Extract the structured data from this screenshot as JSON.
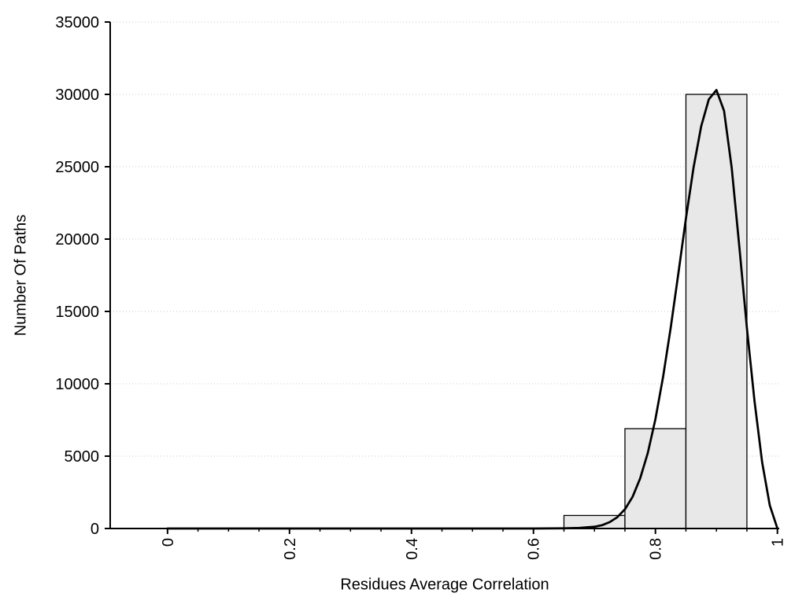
{
  "chart_data": {
    "type": "bar",
    "subtype": "histogram-with-density-curve",
    "title": "",
    "xlabel": "Residues Average Correlation",
    "ylabel": "Number Of Paths",
    "xlim": [
      -0.094,
      1.003
    ],
    "ylim": [
      0,
      35000
    ],
    "grid": {
      "show": true,
      "axis": "y",
      "style": "dotted",
      "color": "#c9c9c9"
    },
    "x_ticks": {
      "values": [
        0,
        0.2,
        0.4,
        0.6,
        0.8,
        1
      ],
      "labels": [
        "0",
        "0.2",
        "0.4",
        "0.6",
        "0.8",
        "1"
      ],
      "minor_step": 0.05,
      "rotated": true
    },
    "y_ticks": {
      "values": [
        0,
        5000,
        10000,
        15000,
        20000,
        25000,
        30000,
        35000
      ],
      "labels": [
        "0",
        "5000",
        "10000",
        "15000",
        "20000",
        "25000",
        "30000",
        "35000"
      ]
    },
    "bars": {
      "fill": "#e8e8e8",
      "stroke": "#000000",
      "bins": [
        {
          "x0": 0.65,
          "x1": 0.75,
          "count": 900
        },
        {
          "x0": 0.75,
          "x1": 0.85,
          "count": 6900
        },
        {
          "x0": 0.85,
          "x1": 0.95,
          "count": 30000
        }
      ]
    },
    "curve": {
      "color": "#000000",
      "width": 2.75,
      "points": [
        [
          0,
          0
        ],
        [
          0.05,
          0
        ],
        [
          0.1,
          0
        ],
        [
          0.15,
          0
        ],
        [
          0.2,
          0
        ],
        [
          0.25,
          0
        ],
        [
          0.3,
          0
        ],
        [
          0.35,
          0
        ],
        [
          0.4,
          0
        ],
        [
          0.45,
          0
        ],
        [
          0.5,
          0
        ],
        [
          0.55,
          0
        ],
        [
          0.6,
          2
        ],
        [
          0.625,
          6
        ],
        [
          0.65,
          18
        ],
        [
          0.675,
          45
        ],
        [
          0.7,
          120
        ],
        [
          0.7125,
          230
        ],
        [
          0.725,
          440
        ],
        [
          0.7375,
          780
        ],
        [
          0.75,
          1330
        ],
        [
          0.7625,
          2190
        ],
        [
          0.775,
          3460
        ],
        [
          0.7875,
          5220
        ],
        [
          0.8,
          7560
        ],
        [
          0.8125,
          10470
        ],
        [
          0.825,
          13870
        ],
        [
          0.8375,
          17610
        ],
        [
          0.85,
          21410
        ],
        [
          0.8625,
          24930
        ],
        [
          0.875,
          27780
        ],
        [
          0.8875,
          29650
        ],
        [
          0.9,
          30300
        ],
        [
          0.9125,
          28860
        ],
        [
          0.925,
          24930
        ],
        [
          0.9375,
          19530
        ],
        [
          0.95,
          13870
        ],
        [
          0.9625,
          8800
        ],
        [
          0.975,
          4570
        ],
        [
          0.9875,
          1600
        ],
        [
          1,
          0
        ]
      ]
    }
  }
}
